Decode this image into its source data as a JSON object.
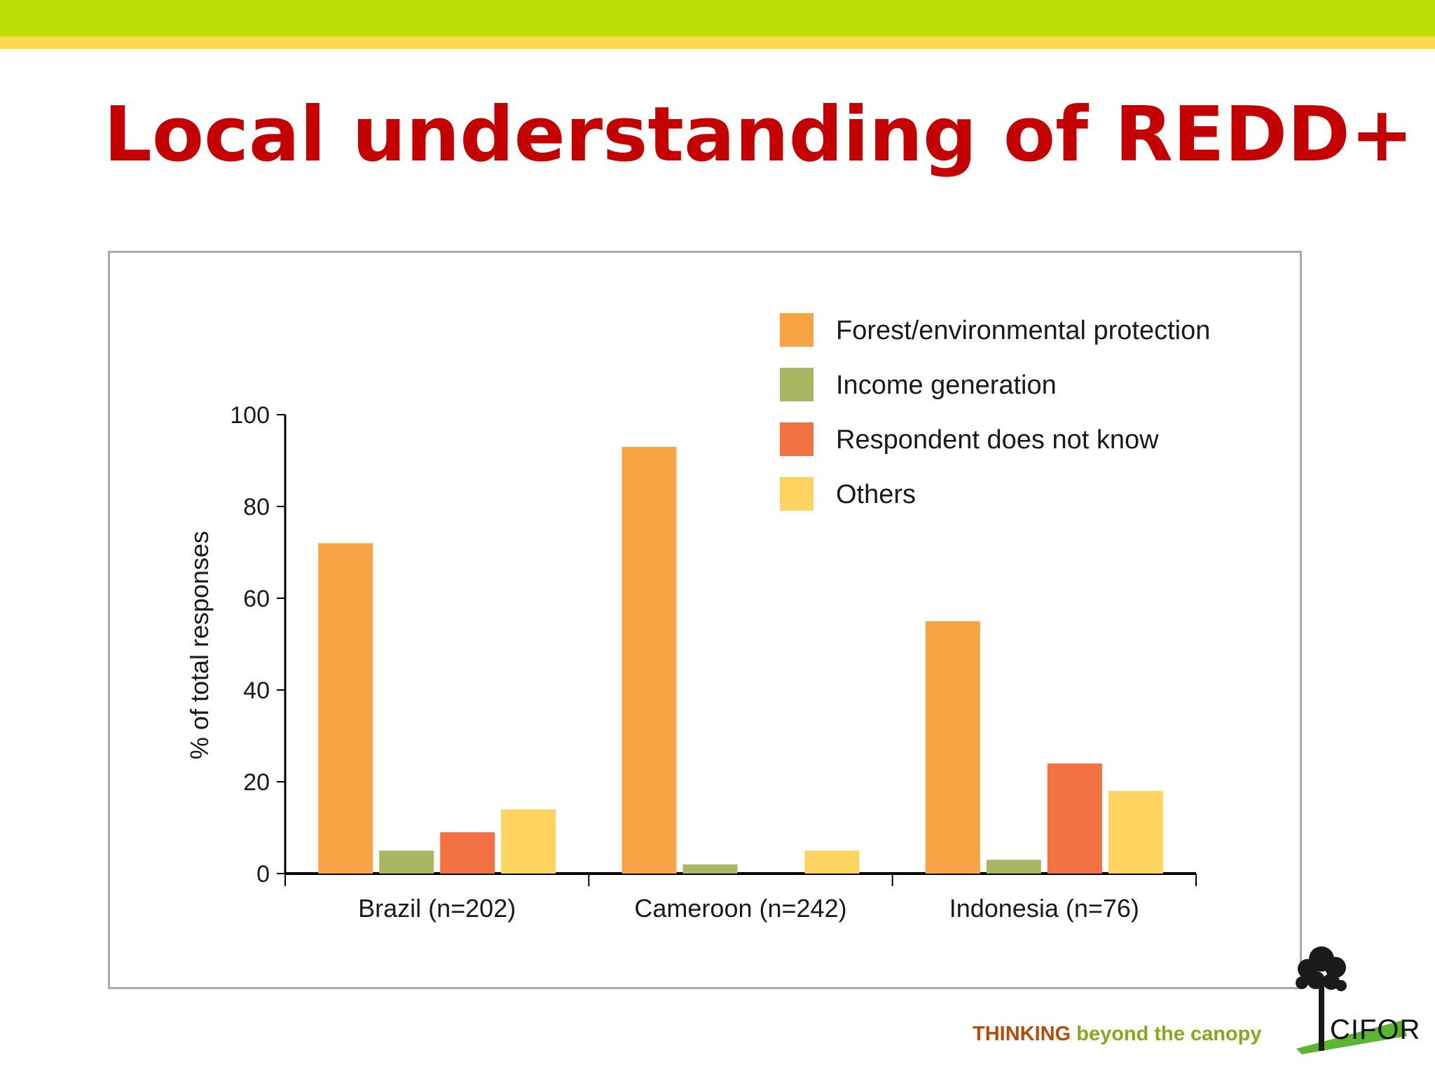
{
  "slide": {
    "title": "Local understanding of REDD+",
    "tagline_strong": "THINKING",
    "tagline_rest": " beyond the canopy",
    "logo_text": "CIFOR",
    "colors": {
      "title": "#c40000",
      "band_green": "#bcdf06",
      "band_yellow": "#fdd94d"
    }
  },
  "chart_data": {
    "type": "bar",
    "title": "",
    "xlabel": "",
    "ylabel": "% of total responses",
    "ylim": [
      0,
      100
    ],
    "yticks": [
      0,
      20,
      40,
      60,
      80,
      100
    ],
    "categories": [
      "Brazil (n=202)",
      "Cameroon (n=242)",
      "Indonesia (n=76)"
    ],
    "series": [
      {
        "name": "Forest/environmental protection",
        "color": "#f8a444",
        "values": [
          72,
          93,
          55
        ]
      },
      {
        "name": "Income generation",
        "color": "#a9b662",
        "values": [
          5,
          2,
          3
        ]
      },
      {
        "name": "Respondent does not know",
        "color": "#f37142",
        "values": [
          9,
          0,
          24
        ]
      },
      {
        "name": "Others",
        "color": "#fed35f",
        "values": [
          14,
          5,
          18
        ]
      }
    ],
    "legend_position": "top-right",
    "grid": false
  }
}
